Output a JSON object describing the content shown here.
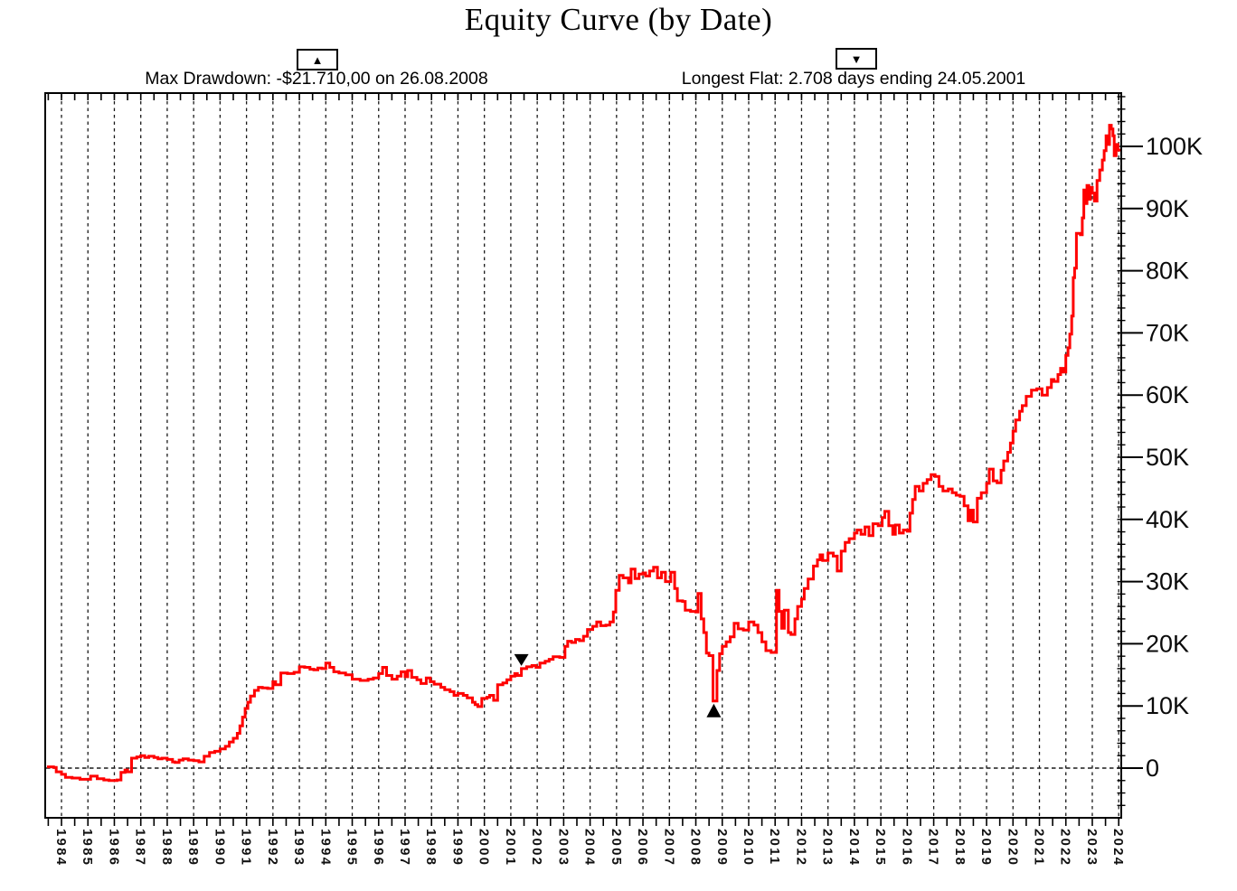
{
  "chart_data": {
    "type": "line",
    "title": "Equity Curve (by Date)",
    "line_color": "#ff0000",
    "grid": "vertical-dashed-per-year, dashed-zero-line",
    "legend": "none",
    "x_axis": {
      "label_rotation_deg": 90,
      "minor_tick_interval_years": 0.5,
      "tick_labels": [
        "1984",
        "1985",
        "1986",
        "1987",
        "1988",
        "1989",
        "1990",
        "1991",
        "1992",
        "1993",
        "1994",
        "1995",
        "1996",
        "1997",
        "1998",
        "1999",
        "2000",
        "2001",
        "2002",
        "2003",
        "2004",
        "2005",
        "2006",
        "2007",
        "2008",
        "2009",
        "2010",
        "2011",
        "2012",
        "2013",
        "2014",
        "2015",
        "2016",
        "2017",
        "2018",
        "2019",
        "2020",
        "2021",
        "2022",
        "2023",
        "2024"
      ]
    },
    "y_axis": {
      "unit": "K",
      "minor_step_k": 2,
      "visible_range_k": [
        -7.8,
        108.6
      ],
      "ticks": [
        {
          "value": 0,
          "label": "0"
        },
        {
          "value": 10,
          "label": "10K"
        },
        {
          "value": 20,
          "label": "20K"
        },
        {
          "value": 30,
          "label": "30K"
        },
        {
          "value": 40,
          "label": "40K"
        },
        {
          "value": 50,
          "label": "50K"
        },
        {
          "value": 60,
          "label": "60K"
        },
        {
          "value": 70,
          "label": "70K"
        },
        {
          "value": 80,
          "label": "80K"
        },
        {
          "value": 90,
          "label": "90K"
        },
        {
          "value": 100,
          "label": "100K"
        }
      ]
    },
    "annotations": {
      "max_drawdown": {
        "label": "Max Drawdown: -$21.710,00 on 26.08.2008",
        "button_glyph": "▲",
        "marker": "up-triangle-below-curve",
        "year": 2008.68,
        "value_k": 10.8
      },
      "longest_flat": {
        "label": "Longest Flat: 2.708 days ending 24.05.2001",
        "button_glyph": "▼",
        "marker": "down-triangle-above-curve",
        "year": 2001.4,
        "value_k": 16.0
      }
    },
    "points": [
      [
        1983.45,
        0.2
      ],
      [
        1983.7,
        0.1
      ],
      [
        1983.8,
        -0.6
      ],
      [
        1984.0,
        -1.0
      ],
      [
        1984.15,
        -1.5
      ],
      [
        1984.4,
        -1.6
      ],
      [
        1984.7,
        -1.8
      ],
      [
        1985.1,
        -1.3
      ],
      [
        1985.35,
        -1.7
      ],
      [
        1985.6,
        -1.9
      ],
      [
        1985.8,
        -2.0
      ],
      [
        1986.1,
        -1.9
      ],
      [
        1986.25,
        -0.7
      ],
      [
        1986.4,
        -0.3
      ],
      [
        1986.5,
        -0.6
      ],
      [
        1986.65,
        1.6
      ],
      [
        1986.85,
        1.8
      ],
      [
        1987.0,
        2.0
      ],
      [
        1987.15,
        1.7
      ],
      [
        1987.3,
        1.9
      ],
      [
        1987.5,
        1.7
      ],
      [
        1987.65,
        1.5
      ],
      [
        1987.8,
        1.6
      ],
      [
        1988.0,
        1.4
      ],
      [
        1988.2,
        1.0
      ],
      [
        1988.3,
        0.9
      ],
      [
        1988.45,
        1.3
      ],
      [
        1988.6,
        1.5
      ],
      [
        1988.8,
        1.3
      ],
      [
        1989.0,
        1.2
      ],
      [
        1989.2,
        1.0
      ],
      [
        1989.4,
        1.9
      ],
      [
        1989.6,
        2.5
      ],
      [
        1989.8,
        2.7
      ],
      [
        1990.0,
        3.1
      ],
      [
        1990.2,
        3.5
      ],
      [
        1990.35,
        4.2
      ],
      [
        1990.5,
        4.8
      ],
      [
        1990.65,
        5.6
      ],
      [
        1990.75,
        6.8
      ],
      [
        1990.85,
        8.2
      ],
      [
        1990.95,
        9.6
      ],
      [
        1991.05,
        10.6
      ],
      [
        1991.15,
        11.6
      ],
      [
        1991.3,
        12.5
      ],
      [
        1991.45,
        13.0
      ],
      [
        1991.6,
        12.9
      ],
      [
        1991.8,
        12.8
      ],
      [
        1992.0,
        13.9
      ],
      [
        1992.1,
        13.4
      ],
      [
        1992.3,
        15.3
      ],
      [
        1992.55,
        15.2
      ],
      [
        1992.8,
        15.4
      ],
      [
        1993.0,
        16.3
      ],
      [
        1993.2,
        16.2
      ],
      [
        1993.4,
        15.9
      ],
      [
        1993.55,
        15.8
      ],
      [
        1993.7,
        16.1
      ],
      [
        1993.85,
        16.0
      ],
      [
        1994.0,
        16.9
      ],
      [
        1994.15,
        16.2
      ],
      [
        1994.3,
        15.5
      ],
      [
        1994.5,
        15.3
      ],
      [
        1994.75,
        15.0
      ],
      [
        1995.0,
        14.3
      ],
      [
        1995.3,
        14.1
      ],
      [
        1995.6,
        14.3
      ],
      [
        1995.8,
        14.5
      ],
      [
        1996.0,
        15.2
      ],
      [
        1996.15,
        16.2
      ],
      [
        1996.3,
        14.9
      ],
      [
        1996.5,
        14.3
      ],
      [
        1996.7,
        14.8
      ],
      [
        1996.85,
        15.5
      ],
      [
        1997.0,
        14.7
      ],
      [
        1997.1,
        15.7
      ],
      [
        1997.25,
        14.6
      ],
      [
        1997.45,
        14.2
      ],
      [
        1997.6,
        13.6
      ],
      [
        1997.8,
        14.5
      ],
      [
        1997.95,
        13.9
      ],
      [
        1998.1,
        13.5
      ],
      [
        1998.35,
        13.0
      ],
      [
        1998.5,
        12.6
      ],
      [
        1998.7,
        12.3
      ],
      [
        1998.85,
        11.7
      ],
      [
        1999.0,
        12.0
      ],
      [
        1999.2,
        11.7
      ],
      [
        1999.35,
        11.3
      ],
      [
        1999.55,
        10.6
      ],
      [
        1999.65,
        10.2
      ],
      [
        1999.75,
        9.9
      ],
      [
        1999.9,
        11.2
      ],
      [
        2000.1,
        11.4
      ],
      [
        2000.2,
        11.7
      ],
      [
        2000.35,
        10.9
      ],
      [
        2000.5,
        13.4
      ],
      [
        2000.7,
        13.7
      ],
      [
        2000.85,
        14.2
      ],
      [
        2001.0,
        14.8
      ],
      [
        2001.15,
        15.2
      ],
      [
        2001.25,
        14.9
      ],
      [
        2001.4,
        16.0
      ],
      [
        2001.6,
        16.3
      ],
      [
        2001.8,
        16.5
      ],
      [
        2001.95,
        16.2
      ],
      [
        2002.1,
        16.9
      ],
      [
        2002.3,
        17.2
      ],
      [
        2002.45,
        17.5
      ],
      [
        2002.6,
        17.9
      ],
      [
        2002.85,
        17.8
      ],
      [
        2003.05,
        19.6
      ],
      [
        2003.15,
        20.4
      ],
      [
        2003.3,
        20.2
      ],
      [
        2003.45,
        20.7
      ],
      [
        2003.6,
        20.5
      ],
      [
        2003.75,
        21.2
      ],
      [
        2003.9,
        22.3
      ],
      [
        2004.1,
        22.8
      ],
      [
        2004.25,
        23.5
      ],
      [
        2004.4,
        22.9
      ],
      [
        2004.6,
        23.0
      ],
      [
        2004.75,
        23.5
      ],
      [
        2004.88,
        25.1
      ],
      [
        2004.97,
        28.6
      ],
      [
        2005.1,
        31.0
      ],
      [
        2005.25,
        30.6
      ],
      [
        2005.45,
        29.8
      ],
      [
        2005.55,
        32.0
      ],
      [
        2005.7,
        30.5
      ],
      [
        2005.85,
        31.2
      ],
      [
        2006.0,
        31.4
      ],
      [
        2006.1,
        30.9
      ],
      [
        2006.25,
        31.7
      ],
      [
        2006.4,
        32.3
      ],
      [
        2006.55,
        30.6
      ],
      [
        2006.7,
        31.5
      ],
      [
        2006.85,
        30.0
      ],
      [
        2007.05,
        31.5
      ],
      [
        2007.2,
        28.9
      ],
      [
        2007.3,
        26.9
      ],
      [
        2007.5,
        26.8
      ],
      [
        2007.6,
        25.4
      ],
      [
        2007.8,
        25.2
      ],
      [
        2008.0,
        25.1
      ],
      [
        2008.08,
        28.1
      ],
      [
        2008.2,
        24.0
      ],
      [
        2008.3,
        21.8
      ],
      [
        2008.4,
        18.5
      ],
      [
        2008.5,
        18.1
      ],
      [
        2008.65,
        10.8
      ],
      [
        2008.8,
        15.7
      ],
      [
        2008.9,
        18.4
      ],
      [
        2009.0,
        19.6
      ],
      [
        2009.15,
        20.3
      ],
      [
        2009.3,
        21.1
      ],
      [
        2009.45,
        23.3
      ],
      [
        2009.6,
        22.4
      ],
      [
        2009.8,
        22.2
      ],
      [
        2010.0,
        23.5
      ],
      [
        2010.2,
        23.0
      ],
      [
        2010.35,
        21.8
      ],
      [
        2010.5,
        20.3
      ],
      [
        2010.65,
        18.9
      ],
      [
        2010.85,
        18.6
      ],
      [
        2011.05,
        28.6
      ],
      [
        2011.15,
        25.2
      ],
      [
        2011.25,
        22.5
      ],
      [
        2011.35,
        25.4
      ],
      [
        2011.5,
        21.8
      ],
      [
        2011.6,
        21.5
      ],
      [
        2011.75,
        24.0
      ],
      [
        2011.85,
        26.0
      ],
      [
        2012.0,
        27.2
      ],
      [
        2012.1,
        28.9
      ],
      [
        2012.25,
        30.4
      ],
      [
        2012.45,
        32.5
      ],
      [
        2012.6,
        33.5
      ],
      [
        2012.7,
        34.3
      ],
      [
        2012.8,
        33.4
      ],
      [
        2013.0,
        34.6
      ],
      [
        2013.2,
        34.1
      ],
      [
        2013.35,
        31.7
      ],
      [
        2013.5,
        34.9
      ],
      [
        2013.65,
        36.3
      ],
      [
        2013.8,
        36.9
      ],
      [
        2014.0,
        37.8
      ],
      [
        2014.1,
        38.3
      ],
      [
        2014.25,
        37.6
      ],
      [
        2014.4,
        38.8
      ],
      [
        2014.55,
        37.4
      ],
      [
        2014.7,
        39.3
      ],
      [
        2014.9,
        39.0
      ],
      [
        2015.05,
        40.3
      ],
      [
        2015.15,
        41.3
      ],
      [
        2015.3,
        39.0
      ],
      [
        2015.45,
        37.6
      ],
      [
        2015.55,
        39.1
      ],
      [
        2015.7,
        37.8
      ],
      [
        2015.85,
        38.3
      ],
      [
        2016.0,
        38.1
      ],
      [
        2016.1,
        41.0
      ],
      [
        2016.2,
        43.2
      ],
      [
        2016.3,
        45.3
      ],
      [
        2016.45,
        44.6
      ],
      [
        2016.6,
        45.8
      ],
      [
        2016.75,
        46.4
      ],
      [
        2016.9,
        47.2
      ],
      [
        2017.05,
        46.9
      ],
      [
        2017.2,
        45.3
      ],
      [
        2017.35,
        44.6
      ],
      [
        2017.55,
        44.9
      ],
      [
        2017.7,
        44.3
      ],
      [
        2017.85,
        43.9
      ],
      [
        2018.0,
        43.7
      ],
      [
        2018.15,
        42.2
      ],
      [
        2018.3,
        39.8
      ],
      [
        2018.4,
        41.5
      ],
      [
        2018.5,
        39.6
      ],
      [
        2018.65,
        43.4
      ],
      [
        2018.8,
        44.3
      ],
      [
        2019.0,
        45.8
      ],
      [
        2019.1,
        48.1
      ],
      [
        2019.25,
        46.2
      ],
      [
        2019.4,
        45.9
      ],
      [
        2019.55,
        47.9
      ],
      [
        2019.65,
        49.4
      ],
      [
        2019.8,
        50.8
      ],
      [
        2019.9,
        52.3
      ],
      [
        2020.0,
        54.2
      ],
      [
        2020.1,
        56.0
      ],
      [
        2020.25,
        57.4
      ],
      [
        2020.35,
        58.3
      ],
      [
        2020.5,
        59.8
      ],
      [
        2020.7,
        60.8
      ],
      [
        2020.9,
        61.0
      ],
      [
        2021.1,
        60.0
      ],
      [
        2021.3,
        61.2
      ],
      [
        2021.45,
        62.5
      ],
      [
        2021.55,
        62.2
      ],
      [
        2021.7,
        63.3
      ],
      [
        2021.8,
        64.3
      ],
      [
        2021.9,
        63.7
      ],
      [
        2022.0,
        66.4
      ],
      [
        2022.08,
        67.6
      ],
      [
        2022.15,
        69.8
      ],
      [
        2022.22,
        72.7
      ],
      [
        2022.28,
        78.9
      ],
      [
        2022.33,
        80.4
      ],
      [
        2022.4,
        86.0
      ],
      [
        2022.55,
        85.8
      ],
      [
        2022.62,
        88.5
      ],
      [
        2022.68,
        93.0
      ],
      [
        2022.73,
        90.8
      ],
      [
        2022.8,
        93.7
      ],
      [
        2022.87,
        91.5
      ],
      [
        2022.93,
        93.4
      ],
      [
        2023.0,
        92.5
      ],
      [
        2023.08,
        91.2
      ],
      [
        2023.18,
        94.5
      ],
      [
        2023.28,
        96.2
      ],
      [
        2023.38,
        97.8
      ],
      [
        2023.45,
        99.3
      ],
      [
        2023.52,
        101.7
      ],
      [
        2023.58,
        100.3
      ],
      [
        2023.65,
        103.4
      ],
      [
        2023.72,
        102.8
      ],
      [
        2023.78,
        101.7
      ],
      [
        2023.83,
        98.5
      ],
      [
        2023.9,
        100.3
      ],
      [
        2023.97,
        99.4
      ],
      [
        2024.05,
        99.2
      ]
    ]
  }
}
